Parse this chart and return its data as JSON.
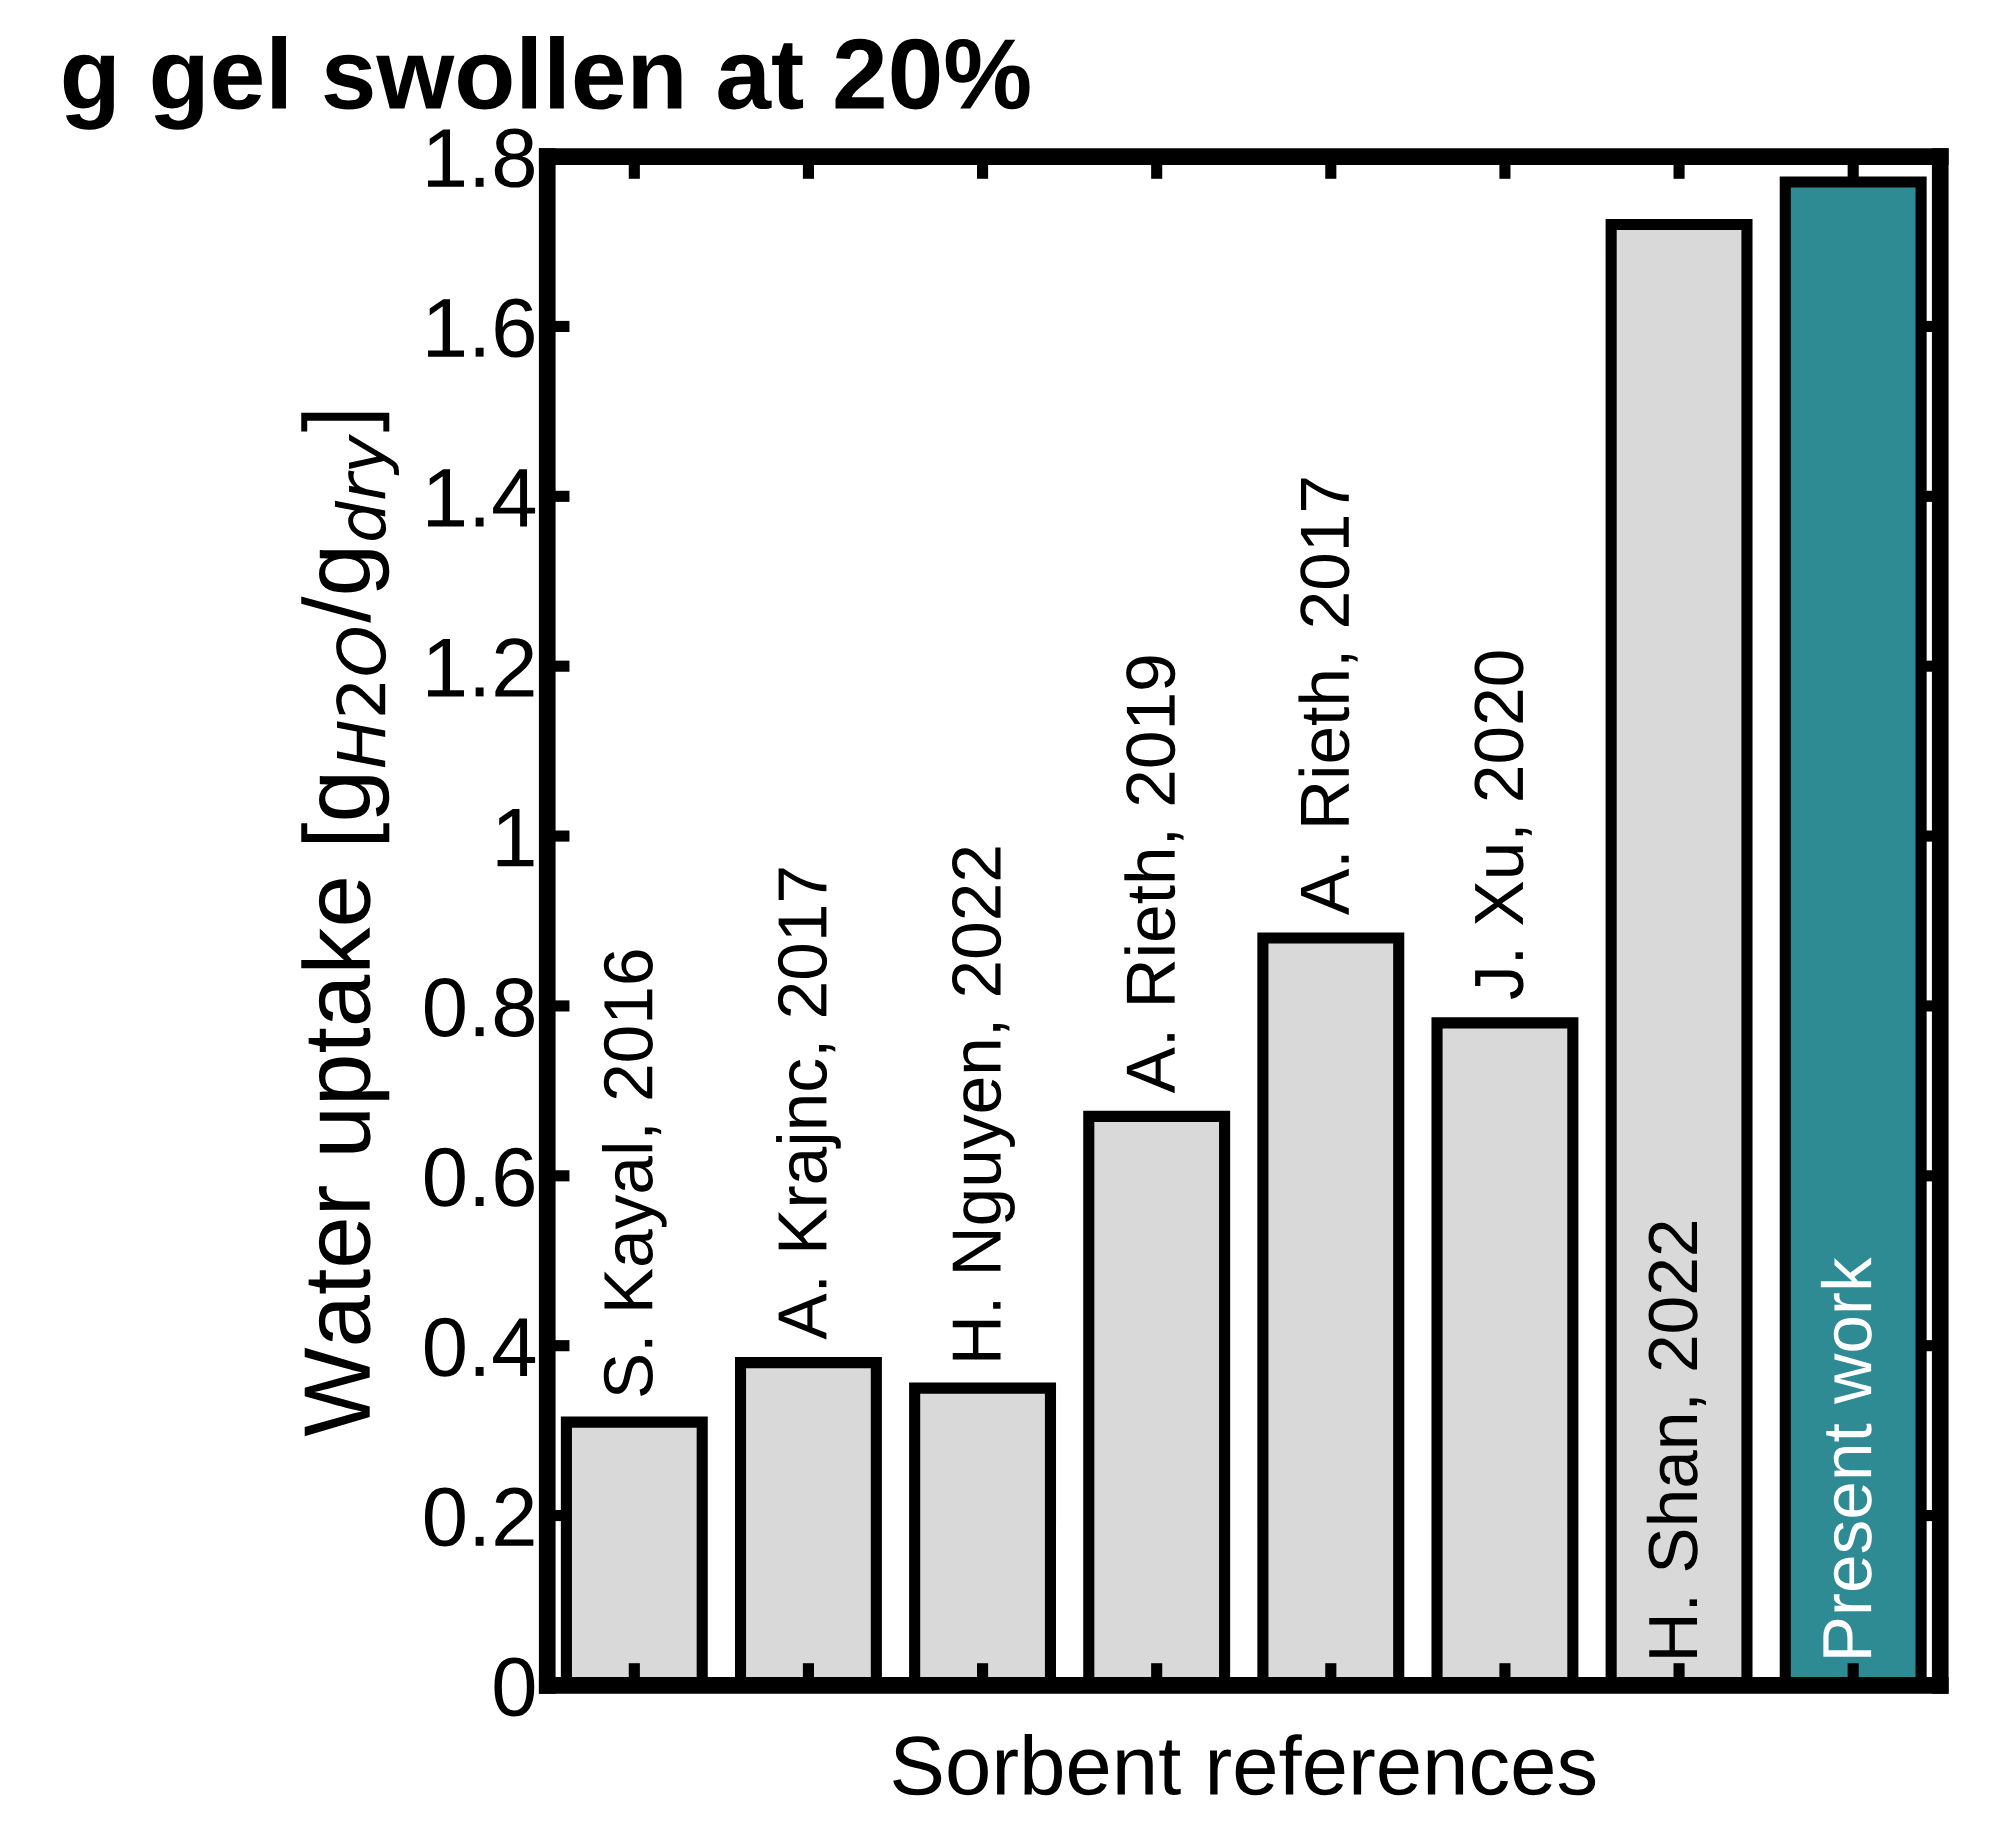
{
  "chart_data": {
    "type": "bar",
    "title": "g gel swollen at 20%",
    "xlabel": "Sorbent references",
    "ylabel": "Water uptake [g$_{H2O}$/g$_{dry}$]",
    "categories": [
      "S. Kayal, 2016",
      "A. Krajnc, 2017",
      "H. Nguyen, 2022",
      "A. Rieth, 2019",
      "A. Rieth, 2017",
      "J. Xu, 2020",
      "H. Shan, 2022",
      "Present work"
    ],
    "values": [
      0.31,
      0.38,
      0.35,
      0.67,
      0.88,
      0.78,
      1.72,
      1.77
    ],
    "colors": [
      "#d9d9d9",
      "#d9d9d9",
      "#d9d9d9",
      "#d9d9d9",
      "#d9d9d9",
      "#d9d9d9",
      "#d9d9d9",
      "#2e8b93"
    ],
    "ylim": [
      0,
      1.8
    ],
    "yticks": [
      0,
      0.2,
      0.4,
      0.6,
      0.8,
      1,
      1.2,
      1.4,
      1.6,
      1.8
    ],
    "grid": false,
    "legend": false
  }
}
